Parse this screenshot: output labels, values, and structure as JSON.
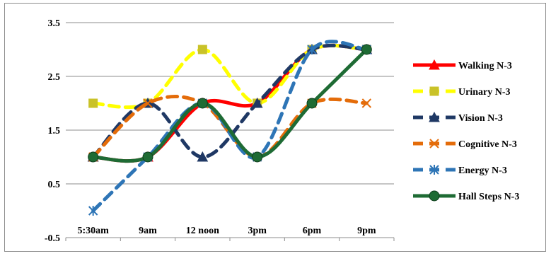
{
  "chart_data": {
    "type": "line",
    "categories": [
      "5:30am",
      "9am",
      "12 noon",
      "3pm",
      "6pm",
      "9pm"
    ],
    "ylim": [
      -0.5,
      3.5
    ],
    "yticks": [
      "3.5",
      "2.5",
      "1.5",
      "0.5",
      "-0.5"
    ],
    "grid": true,
    "smooth": true,
    "legend_position": "right",
    "series": [
      {
        "name": "Walking N-3",
        "values": [
          1,
          1,
          2,
          2,
          3,
          3
        ],
        "color": "#ff0000",
        "dash": "solid",
        "marker": "triangle"
      },
      {
        "name": "Urinary N-3",
        "values": [
          2,
          2,
          3,
          2,
          3,
          3
        ],
        "color": "#ffff00",
        "dash": "dashed",
        "marker": "square"
      },
      {
        "name": "Vision N-3",
        "values": [
          1,
          2,
          1,
          2,
          3,
          3
        ],
        "color": "#1f3864",
        "dash": "dashed",
        "marker": "triangle"
      },
      {
        "name": "Cognitive N-3",
        "values": [
          1,
          2,
          2,
          1,
          2,
          2
        ],
        "color": "#e46c0a",
        "dash": "dashed",
        "marker": "x"
      },
      {
        "name": "Energy N-3",
        "values": [
          0,
          1,
          2,
          1,
          3,
          3
        ],
        "color": "#2e75b6",
        "dash": "dashed",
        "marker": "star"
      },
      {
        "name": "Hall Steps N-3",
        "values": [
          1,
          1,
          2,
          1,
          2,
          3
        ],
        "color": "#1e6b34",
        "dash": "solid",
        "marker": "circle"
      }
    ]
  }
}
